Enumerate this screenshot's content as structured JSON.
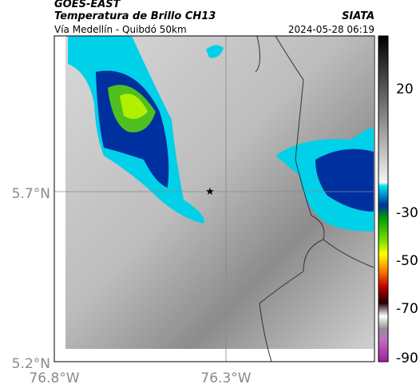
{
  "header": {
    "satellite": "GOES-EAST",
    "title": "Temperatura de Brillo CH13",
    "agency": "SIATA",
    "route": "Vía Medellín - Quibdó 50km",
    "timestamp": "2024-05-28 06:19"
  },
  "axes": {
    "lat": [
      "5.7°N",
      "5.2°N"
    ],
    "lon": [
      "76.8°W",
      "76.3°W"
    ]
  },
  "colorbar": {
    "labels": [
      "20",
      "-30",
      "-50",
      "-70",
      "-90"
    ]
  }
}
